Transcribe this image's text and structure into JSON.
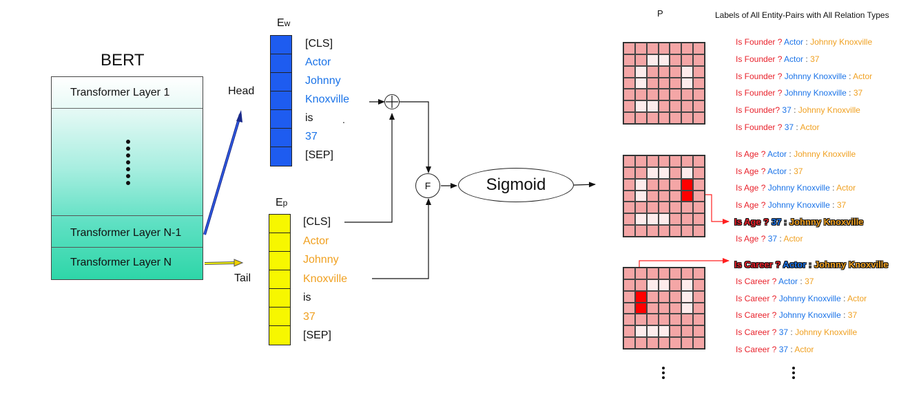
{
  "bert": {
    "title": "BERT",
    "layers": [
      "Transformer Layer 1",
      "Transformer Layer N-1",
      "Transformer Layer N"
    ]
  },
  "labels": {
    "head": "Head",
    "tail": "Tail",
    "ew_main": "E",
    "ew_sub": "w",
    "ep_main": "E",
    "ep_sub": "p",
    "p": "P",
    "f": "F",
    "sigmoid": "Sigmoid",
    "header": "Labels of All Entity-Pairs with All Relation Types",
    "stray_dot": "."
  },
  "ew_tokens": [
    {
      "text": "[CLS]",
      "color": "plain"
    },
    {
      "text": "Actor",
      "color": "blue"
    },
    {
      "text": "Johnny",
      "color": "blue"
    },
    {
      "text": "Knoxville",
      "color": "blue"
    },
    {
      "text": "is",
      "color": "plain"
    },
    {
      "text": "37",
      "color": "blue"
    },
    {
      "text": "[SEP]",
      "color": "plain"
    }
  ],
  "ep_tokens": [
    {
      "text": "[CLS]",
      "color": "plain"
    },
    {
      "text": "Actor",
      "color": "orange"
    },
    {
      "text": "Johnny",
      "color": "orange"
    },
    {
      "text": "Knoxville",
      "color": "orange"
    },
    {
      "text": "is",
      "color": "plain"
    },
    {
      "text": "37",
      "color": "orange"
    },
    {
      "text": "[SEP]",
      "color": "plain"
    }
  ],
  "colors": {
    "ew_fill": "#1e5cf0",
    "ep_fill": "#f7f700",
    "matrix_cell": "#f4a6a6",
    "matrix_light": "#fdecec",
    "matrix_hot": "#ff0000",
    "relation": "#e8202a",
    "head_entity": "#1a73e8",
    "tail_entity": "#f0a020"
  },
  "groups": [
    {
      "items": [
        {
          "rel": "Is Founder ?",
          "head": "Actor",
          "sep": ":",
          "tail": "Johnny Knoxville",
          "highlight": false
        },
        {
          "rel": "Is Founder ?",
          "head": "Actor",
          "sep": ":",
          "tail": "37",
          "highlight": false
        },
        {
          "rel": "Is Founder ?",
          "head": "Johnny Knoxville",
          "sep": ":",
          "tail": "Actor",
          "highlight": false
        },
        {
          "rel": "Is Founder ?",
          "head": "Johnny Knoxville",
          "sep": ":",
          "tail": "37",
          "highlight": false
        },
        {
          "rel": "Is Founder?",
          "head": "37",
          "sep": ":",
          "tail": "Johnny Knoxville",
          "highlight": false
        },
        {
          "rel": "Is Founder ?",
          "head": "37",
          "sep": ":",
          "tail": "Actor",
          "highlight": false
        }
      ]
    },
    {
      "items": [
        {
          "rel": "Is Age ?",
          "head": "Actor",
          "sep": ":",
          "tail": "Johnny Knoxville",
          "highlight": false
        },
        {
          "rel": "Is Age ?",
          "head": "Actor",
          "sep": ":",
          "tail": "37",
          "highlight": false
        },
        {
          "rel": "Is Age ?",
          "head": "Johnny Knoxville",
          "sep": ":",
          "tail": "Actor",
          "highlight": false
        },
        {
          "rel": "Is Age ?",
          "head": "Johnny Knoxville",
          "sep": ":",
          "tail": "37",
          "highlight": false
        },
        {
          "rel": "Is Age ?",
          "head": "37",
          "sep": ":",
          "tail": "Johnny Knoxville",
          "highlight": true
        },
        {
          "rel": "Is Age ?",
          "head": "37",
          "sep": ":",
          "tail": "Actor",
          "highlight": false
        }
      ]
    },
    {
      "items": [
        {
          "rel": "Is Career ?",
          "head": "Actor",
          "sep": ":",
          "tail": "Johnny Knoxville",
          "highlight": true
        },
        {
          "rel": "Is Career ?",
          "head": "Actor",
          "sep": ":",
          "tail": "37",
          "highlight": false
        },
        {
          "rel": "Is Career ?",
          "head": "Johnny Knoxville",
          "sep": ":",
          "tail": "Actor",
          "highlight": false
        },
        {
          "rel": "Is Career ?",
          "head": "Johnny Knoxville",
          "sep": ":",
          "tail": "37",
          "highlight": false
        },
        {
          "rel": "Is Career ?",
          "head": "37",
          "sep": ":",
          "tail": "Johnny Knoxville",
          "highlight": false
        },
        {
          "rel": "Is Career ?",
          "head": "37",
          "sep": ":",
          "tail": "Actor",
          "highlight": false
        }
      ]
    }
  ]
}
